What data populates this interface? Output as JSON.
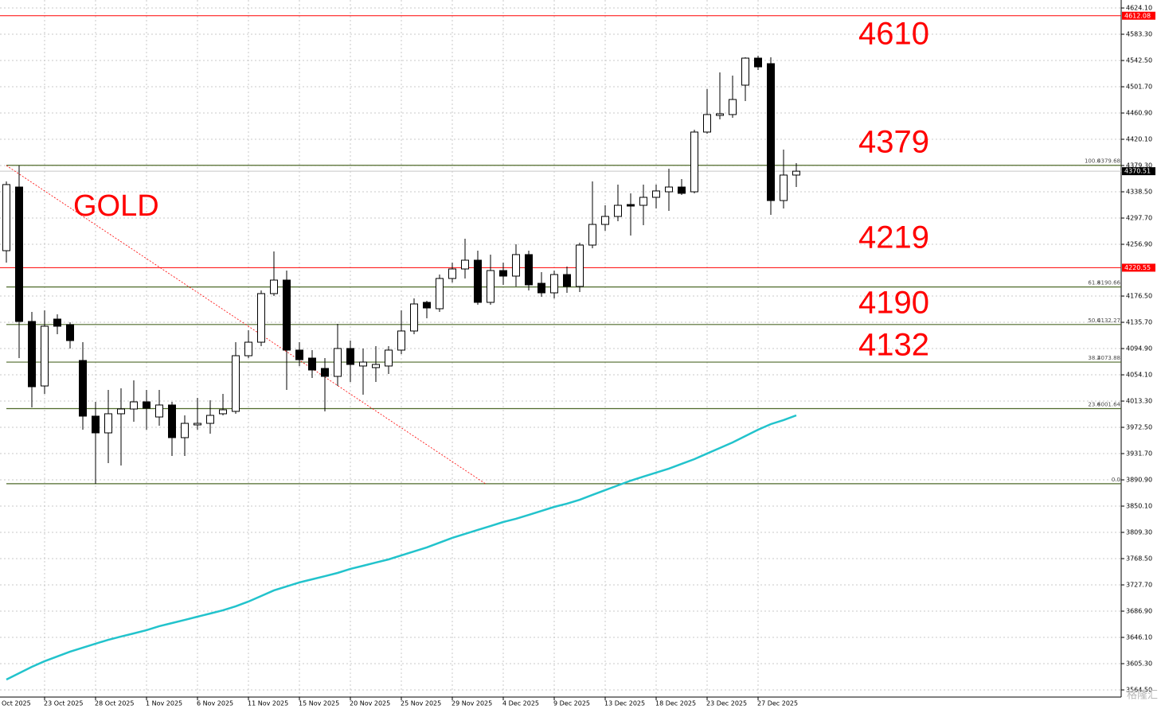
{
  "chart_data": {
    "type": "candlestick",
    "title": "GOLD",
    "categories": [
      null,
      null,
      null,
      "23 Oct 2025",
      null,
      null,
      null,
      "28 Oct 2025",
      null,
      null,
      null,
      "1 Nov 2025",
      null,
      null,
      null,
      "6 Nov 2025",
      null,
      null,
      null,
      "11 Nov 2025",
      null,
      null,
      null,
      "15 Nov 2025",
      null,
      null,
      null,
      "20 Nov 2025",
      null,
      null,
      null,
      "25 Nov 2025",
      null,
      null,
      null,
      "29 Nov 2025",
      null,
      null,
      null,
      "4 Dec 2025",
      null,
      null,
      null,
      "9 Dec 2025",
      null,
      null,
      null,
      "13 Dec 2025",
      null,
      null,
      null,
      "18 Dec 2025",
      null,
      null,
      null,
      "23 Dec 2025",
      null,
      null,
      null,
      "27 Dec 2025",
      null,
      null,
      null
    ],
    "edge_label": "Oct 2025",
    "open": [
      4247.0,
      4345.9,
      4137.0,
      4036.8,
      4140.7,
      4132.0,
      4076.4,
      3989.9,
      3963.9,
      3993.6,
      4001.0,
      4012.1,
      3988.6,
      4007.2,
      3956.5,
      3976.3,
      3978.7,
      3993.6,
      3997.3,
      4083.8,
      4104.8,
      4180.3,
      4201.3,
      4092.5,
      4080.1,
      4064.0,
      4051.7,
      4095.0,
      4067.8,
      4065.3,
      4067.8,
      4092.5,
      4122.2,
      4166.7,
      4156.8,
      4203.8,
      4218.6,
      4232.2,
      4166.7,
      4216.1,
      4207.5,
      4240.9,
      4196.3,
      4181.5,
      4209.9,
      4191.4,
      4255.7,
      4287.8,
      4300.2,
      4318.7,
      4317.5,
      4329.9,
      4338.5,
      4345.9,
      4338.5,
      4431.3,
      4457.2,
      4458.5,
      4504.2,
      4546.2,
      4537.6,
      4324.9,
      4364.5
    ],
    "high": [
      4354.6,
      4379.3,
      4151.8,
      4154.3,
      4148.1,
      4135.8,
      4104.8,
      4012.1,
      4030.7,
      4033.1,
      4045.5,
      4030.7,
      4030.7,
      4012.1,
      3991.1,
      4018.3,
      4014.6,
      4024.5,
      4104.8,
      4123.4,
      4185.2,
      4245.8,
      4216.1,
      4104.8,
      4092.5,
      4080.1,
      4133.3,
      4107.3,
      4095.0,
      4098.7,
      4098.7,
      4154.3,
      4172.8,
      4169.1,
      4209.9,
      4228.5,
      4265.6,
      4247.0,
      4240.9,
      4228.5,
      4256.9,
      4247.0,
      4213.7,
      4216.1,
      4222.3,
      4259.4,
      4354.6,
      4317.5,
      4349.7,
      4336.1,
      4349.7,
      4349.7,
      4374.4,
      4358.3,
      4435.0,
      4498.0,
      4524.0,
      4519.0,
      4547.5,
      4550.0,
      4547.5,
      4404.1,
      4383.0
    ],
    "low": [
      4228.5,
      4080.1,
      4003.5,
      4024.5,
      4117.2,
      4095.0,
      3968.8,
      3884.8,
      3916.9,
      3913.2,
      3981.2,
      3968.8,
      3975.0,
      3928.0,
      3928.0,
      3968.8,
      3962.7,
      3991.1,
      3993.6,
      4080.1,
      4098.7,
      4176.6,
      4030.7,
      4067.8,
      4049.2,
      3997.3,
      4036.8,
      4043.0,
      4023.2,
      4043.0,
      4055.4,
      4086.3,
      4117.2,
      4141.9,
      4151.8,
      4197.6,
      4203.8,
      4163.0,
      4163.0,
      4193.9,
      4191.4,
      4185.2,
      4175.3,
      4172.8,
      4181.5,
      4182.7,
      4250.7,
      4277.9,
      4292.8,
      4270.5,
      4286.6,
      4312.6,
      4308.9,
      4333.6,
      4336.1,
      4428.8,
      4451.0,
      4453.5,
      4479.5,
      4527.7,
      4302.7,
      4312.6,
      4345.9
    ],
    "close": [
      4349.7,
      4137.0,
      4035.6,
      4129.6,
      4129.6,
      4107.3,
      3989.9,
      3963.9,
      3993.6,
      4001.0,
      4012.1,
      4002.2,
      4007.2,
      3956.5,
      3978.7,
      3978.7,
      3991.1,
      3999.8,
      4083.8,
      4104.8,
      4180.3,
      4201.3,
      4092.5,
      4077.6,
      4061.6,
      4051.7,
      4095.0,
      4070.2,
      4073.9,
      4070.2,
      4092.5,
      4122.2,
      4164.2,
      4158.0,
      4203.8,
      4218.6,
      4232.2,
      4166.7,
      4216.1,
      4207.5,
      4240.9,
      4193.9,
      4181.5,
      4209.9,
      4191.4,
      4255.7,
      4287.8,
      4300.2,
      4317.5,
      4316.3,
      4329.9,
      4339.8,
      4345.9,
      4336.1,
      4431.3,
      4458.5,
      4459.7,
      4481.9,
      4546.2,
      4532.6,
      4324.9,
      4364.5,
      4370.51
    ],
    "up_color": "#ffffff",
    "down_color": "#000000",
    "ma": {
      "color": "#22c3cc",
      "values": [
        3580.6,
        3590.5,
        3600.4,
        3609.1,
        3616.5,
        3623.9,
        3630.1,
        3636.3,
        3642.4,
        3647.4,
        3652.3,
        3657.3,
        3663.5,
        3668.4,
        3673.3,
        3678.3,
        3683.2,
        3688.2,
        3694.4,
        3701.8,
        3710.4,
        3719.1,
        3725.3,
        3731.5,
        3736.4,
        3741.3,
        3746.3,
        3752.5,
        3757.4,
        3762.4,
        3767.3,
        3773.5,
        3779.7,
        3785.9,
        3793.3,
        3800.7,
        3806.9,
        3813.1,
        3819.2,
        3825.4,
        3830.4,
        3836.5,
        3842.7,
        3848.9,
        3853.9,
        3860.0,
        3867.5,
        3874.9,
        3882.3,
        3889.7,
        3895.9,
        3902.1,
        3908.3,
        3915.7,
        3923.1,
        3931.8,
        3940.4,
        3949.1,
        3959.0,
        3968.8,
        3977.5,
        3983.7,
        3991.1
      ]
    },
    "ylim": [
      3553.4,
      4636.5
    ],
    "yticks": [
      {
        "value": 4624.1,
        "label": "4624.10"
      },
      {
        "value": 4583.3,
        "label": "4583.30"
      },
      {
        "value": 4542.5,
        "label": "4542.50"
      },
      {
        "value": 4501.7,
        "label": "4501.70"
      },
      {
        "value": 4460.9,
        "label": "4460.90"
      },
      {
        "value": 4420.1,
        "label": "4420.10"
      },
      {
        "value": 4379.3,
        "label": "4379.30"
      },
      {
        "value": 4338.5,
        "label": "4338.50"
      },
      {
        "value": 4297.7,
        "label": "4297.70"
      },
      {
        "value": 4256.9,
        "label": "4256.90"
      },
      {
        "value": 4176.5,
        "label": "4176.50"
      },
      {
        "value": 4135.7,
        "label": "4135.70"
      },
      {
        "value": 4094.9,
        "label": "4094.90"
      },
      {
        "value": 4054.1,
        "label": "4054.10"
      },
      {
        "value": 4013.3,
        "label": "4013.30"
      },
      {
        "value": 3972.5,
        "label": "3972.50"
      },
      {
        "value": 3931.7,
        "label": "3931.70"
      },
      {
        "value": 3890.9,
        "label": "3890.90"
      },
      {
        "value": 3850.1,
        "label": "3850.10"
      },
      {
        "value": 3809.3,
        "label": "3809.30"
      },
      {
        "value": 3768.5,
        "label": "3768.50"
      },
      {
        "value": 3727.7,
        "label": "3727.70"
      },
      {
        "value": 3686.9,
        "label": "3686.90"
      },
      {
        "value": 3646.1,
        "label": "3646.10"
      },
      {
        "value": 3605.3,
        "label": "3605.30"
      },
      {
        "value": 3564.5,
        "label": "3564.50"
      }
    ],
    "grid": true,
    "fib": {
      "color": "#4f6a2a",
      "levels": [
        "100.0",
        "61.8",
        "50.0",
        "38.2",
        "23.6",
        "0.0"
      ],
      "values": [
        4379.68,
        4190.66,
        4132.27,
        4073.88,
        4001.64,
        3884.9
      ],
      "value_labels": [
        "4379.68",
        "4190.66",
        "4132.27",
        "4073.88",
        "4001.64",
        null
      ]
    },
    "hlines": {
      "color": "#ff0000",
      "values": [
        4612.08,
        4220.55
      ]
    },
    "last_price": {
      "color": "#c8c8c8",
      "value": 4370.51
    },
    "trendline": {
      "color": "#ff0000",
      "x": [
        0,
        37.6
      ],
      "values": [
        4379.3,
        3884.9
      ]
    },
    "annotations": [
      "4610",
      "4379",
      "4219",
      "4190",
      "4132"
    ],
    "watermark": "格隆汇"
  }
}
